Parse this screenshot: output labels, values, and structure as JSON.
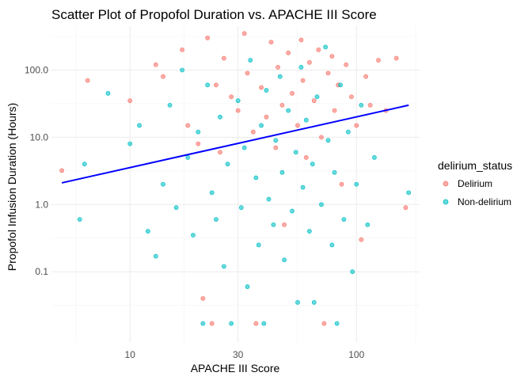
{
  "chart_data": {
    "type": "scatter",
    "title": "Scatter Plot of Propofol Duration vs. APACHE III Score",
    "xlabel": "APACHE III Score",
    "ylabel": "Propofol Infusion Duration (Hours)",
    "x_scale": "log10",
    "y_scale": "log10",
    "xlim": [
      4.5,
      190
    ],
    "ylim": [
      0.009,
      450
    ],
    "x_ticks": [
      {
        "value": 10,
        "label": "10"
      },
      {
        "value": 30,
        "label": "30"
      },
      {
        "value": 100,
        "label": "100"
      }
    ],
    "y_ticks": [
      {
        "value": 0.1,
        "label": "0.1"
      },
      {
        "value": 1,
        "label": "1.0"
      },
      {
        "value": 10,
        "label": "10.0"
      },
      {
        "value": 100,
        "label": "100.0"
      }
    ],
    "grid": true,
    "legend": {
      "title": "delirium_status",
      "placement": "right",
      "entries": [
        {
          "label": "Delirium",
          "color": "#F8766D"
        },
        {
          "label": "Non-delirium",
          "color": "#00BFC4"
        }
      ]
    },
    "series": [
      {
        "name": "Delirium",
        "color": "#F8766D",
        "points": [
          {
            "x": 5,
            "y": 3.2
          },
          {
            "x": 6.5,
            "y": 70
          },
          {
            "x": 10,
            "y": 35
          },
          {
            "x": 13,
            "y": 120
          },
          {
            "x": 14,
            "y": 80
          },
          {
            "x": 17,
            "y": 200
          },
          {
            "x": 18,
            "y": 15
          },
          {
            "x": 20,
            "y": 8
          },
          {
            "x": 21,
            "y": 0.04
          },
          {
            "x": 22,
            "y": 300
          },
          {
            "x": 23,
            "y": 0.017
          },
          {
            "x": 24,
            "y": 60
          },
          {
            "x": 25,
            "y": 6
          },
          {
            "x": 26,
            "y": 150
          },
          {
            "x": 28,
            "y": 40
          },
          {
            "x": 30,
            "y": 25
          },
          {
            "x": 32,
            "y": 350
          },
          {
            "x": 33,
            "y": 90
          },
          {
            "x": 35,
            "y": 12
          },
          {
            "x": 36,
            "y": 0.017
          },
          {
            "x": 38,
            "y": 55
          },
          {
            "x": 40,
            "y": 20
          },
          {
            "x": 42,
            "y": 260
          },
          {
            "x": 44,
            "y": 7
          },
          {
            "x": 45,
            "y": 110
          },
          {
            "x": 47,
            "y": 30
          },
          {
            "x": 48,
            "y": 0.5
          },
          {
            "x": 50,
            "y": 180
          },
          {
            "x": 52,
            "y": 45
          },
          {
            "x": 55,
            "y": 15
          },
          {
            "x": 57,
            "y": 280
          },
          {
            "x": 58,
            "y": 70
          },
          {
            "x": 60,
            "y": 5
          },
          {
            "x": 62,
            "y": 130
          },
          {
            "x": 65,
            "y": 35
          },
          {
            "x": 68,
            "y": 200
          },
          {
            "x": 70,
            "y": 10
          },
          {
            "x": 72,
            "y": 0.017
          },
          {
            "x": 75,
            "y": 90
          },
          {
            "x": 78,
            "y": 160
          },
          {
            "x": 80,
            "y": 25
          },
          {
            "x": 83,
            "y": 60
          },
          {
            "x": 86,
            "y": 2
          },
          {
            "x": 90,
            "y": 120
          },
          {
            "x": 95,
            "y": 40
          },
          {
            "x": 100,
            "y": 15
          },
          {
            "x": 105,
            "y": 0.3
          },
          {
            "x": 110,
            "y": 80
          },
          {
            "x": 115,
            "y": 30
          },
          {
            "x": 125,
            "y": 140
          },
          {
            "x": 135,
            "y": 25
          },
          {
            "x": 150,
            "y": 150
          },
          {
            "x": 165,
            "y": 0.9
          }
        ]
      },
      {
        "name": "Non-delirium",
        "color": "#00BFC4",
        "points": [
          {
            "x": 6,
            "y": 0.6
          },
          {
            "x": 6.3,
            "y": 4
          },
          {
            "x": 8,
            "y": 45
          },
          {
            "x": 10,
            "y": 8
          },
          {
            "x": 11,
            "y": 15
          },
          {
            "x": 12,
            "y": 0.4
          },
          {
            "x": 13,
            "y": 0.17
          },
          {
            "x": 14,
            "y": 2
          },
          {
            "x": 15,
            "y": 30
          },
          {
            "x": 16,
            "y": 0.9
          },
          {
            "x": 17,
            "y": 100
          },
          {
            "x": 18,
            "y": 5
          },
          {
            "x": 19,
            "y": 0.35
          },
          {
            "x": 20,
            "y": 12
          },
          {
            "x": 21,
            "y": 0.017
          },
          {
            "x": 22,
            "y": 60
          },
          {
            "x": 23,
            "y": 1.5
          },
          {
            "x": 24,
            "y": 0.6
          },
          {
            "x": 25,
            "y": 20
          },
          {
            "x": 26,
            "y": 0.12
          },
          {
            "x": 27,
            "y": 4
          },
          {
            "x": 28,
            "y": 0.017
          },
          {
            "x": 30,
            "y": 35
          },
          {
            "x": 31,
            "y": 0.9
          },
          {
            "x": 32,
            "y": 7
          },
          {
            "x": 33,
            "y": 0.06
          },
          {
            "x": 34,
            "y": 140
          },
          {
            "x": 36,
            "y": 2.5
          },
          {
            "x": 37,
            "y": 0.25
          },
          {
            "x": 38,
            "y": 15
          },
          {
            "x": 39,
            "y": 0.017
          },
          {
            "x": 40,
            "y": 50
          },
          {
            "x": 41,
            "y": 1.2
          },
          {
            "x": 43,
            "y": 0.5
          },
          {
            "x": 44,
            "y": 9
          },
          {
            "x": 46,
            "y": 80
          },
          {
            "x": 47,
            "y": 3
          },
          {
            "x": 48,
            "y": 0.15
          },
          {
            "x": 50,
            "y": 25
          },
          {
            "x": 52,
            "y": 0.8
          },
          {
            "x": 54,
            "y": 6
          },
          {
            "x": 55,
            "y": 0.035
          },
          {
            "x": 57,
            "y": 110
          },
          {
            "x": 58,
            "y": 1.8
          },
          {
            "x": 60,
            "y": 18
          },
          {
            "x": 62,
            "y": 0.4
          },
          {
            "x": 64,
            "y": 4
          },
          {
            "x": 65,
            "y": 0.035
          },
          {
            "x": 67,
            "y": 40
          },
          {
            "x": 70,
            "y": 1
          },
          {
            "x": 73,
            "y": 220
          },
          {
            "x": 75,
            "y": 9
          },
          {
            "x": 78,
            "y": 0.25
          },
          {
            "x": 80,
            "y": 3
          },
          {
            "x": 82,
            "y": 0.017
          },
          {
            "x": 85,
            "y": 60
          },
          {
            "x": 88,
            "y": 0.6
          },
          {
            "x": 92,
            "y": 12
          },
          {
            "x": 96,
            "y": 0.1
          },
          {
            "x": 100,
            "y": 2
          },
          {
            "x": 105,
            "y": 30
          },
          {
            "x": 112,
            "y": 0.5
          },
          {
            "x": 120,
            "y": 5
          },
          {
            "x": 170,
            "y": 1.5
          }
        ]
      }
    ],
    "trend_line": {
      "color": "#0000FF",
      "x": [
        5,
        170
      ],
      "y": [
        2.1,
        30
      ]
    }
  }
}
